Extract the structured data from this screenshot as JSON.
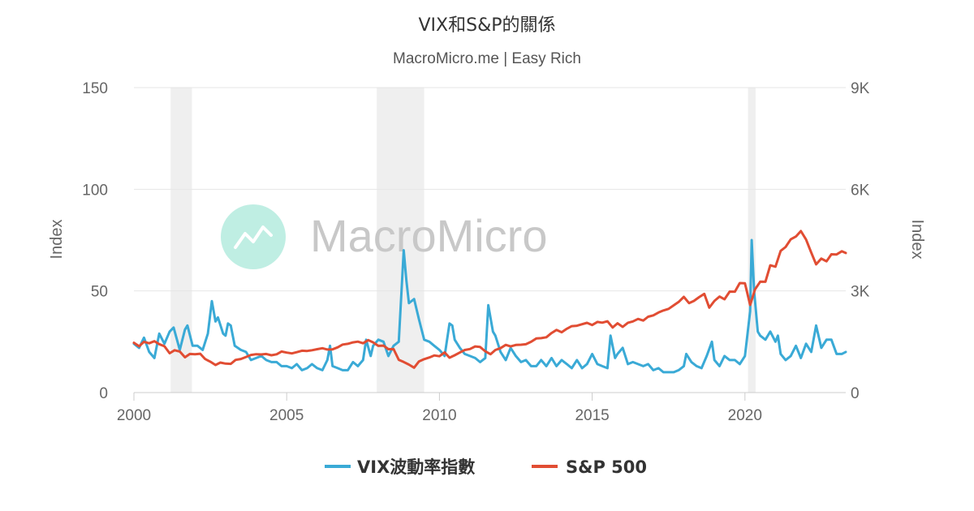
{
  "chart_data": {
    "type": "line",
    "title": "VIX和S&P的關係",
    "subtitle": "MacroMicro.me | Easy Rich",
    "watermark": "MacroMicro",
    "y_left": {
      "label": "Index",
      "range": [
        0,
        150
      ],
      "ticks": [
        "0",
        "50",
        "100",
        "150"
      ]
    },
    "y_right": {
      "label": "Index",
      "range": [
        0,
        9000
      ],
      "ticks": [
        "0",
        "3K",
        "6K",
        "9K"
      ]
    },
    "x": {
      "range": [
        2000.0,
        2023.3
      ],
      "ticks": [
        "2000",
        "2005",
        "2010",
        "2015",
        "2020"
      ]
    },
    "grid": true,
    "legend_position": "bottom",
    "recession_bands": [
      [
        2001.2,
        2001.9
      ],
      [
        2007.95,
        2009.5
      ],
      [
        2020.1,
        2020.35
      ]
    ],
    "series": [
      {
        "name": "VIX波動率指數",
        "axis": "left",
        "color": "#3aaad6",
        "points": [
          [
            2000.0,
            24
          ],
          [
            2000.17,
            22
          ],
          [
            2000.33,
            27
          ],
          [
            2000.5,
            20
          ],
          [
            2000.67,
            17
          ],
          [
            2000.83,
            29
          ],
          [
            2001.0,
            24
          ],
          [
            2001.17,
            30
          ],
          [
            2001.3,
            32
          ],
          [
            2001.5,
            21
          ],
          [
            2001.67,
            31
          ],
          [
            2001.75,
            33
          ],
          [
            2001.92,
            23
          ],
          [
            2002.08,
            23
          ],
          [
            2002.25,
            21
          ],
          [
            2002.42,
            29
          ],
          [
            2002.55,
            45
          ],
          [
            2002.67,
            35
          ],
          [
            2002.75,
            37
          ],
          [
            2002.92,
            29
          ],
          [
            2003.0,
            28
          ],
          [
            2003.08,
            34
          ],
          [
            2003.17,
            33
          ],
          [
            2003.3,
            23
          ],
          [
            2003.5,
            21
          ],
          [
            2003.67,
            20
          ],
          [
            2003.83,
            16
          ],
          [
            2004.0,
            17
          ],
          [
            2004.17,
            18
          ],
          [
            2004.33,
            16
          ],
          [
            2004.5,
            15
          ],
          [
            2004.67,
            15
          ],
          [
            2004.83,
            13
          ],
          [
            2005.0,
            13
          ],
          [
            2005.17,
            12
          ],
          [
            2005.33,
            14
          ],
          [
            2005.5,
            11
          ],
          [
            2005.67,
            12
          ],
          [
            2005.83,
            14
          ],
          [
            2006.0,
            12
          ],
          [
            2006.17,
            11
          ],
          [
            2006.33,
            16
          ],
          [
            2006.42,
            23
          ],
          [
            2006.5,
            13
          ],
          [
            2006.67,
            12
          ],
          [
            2006.83,
            11
          ],
          [
            2007.0,
            11
          ],
          [
            2007.17,
            15
          ],
          [
            2007.33,
            13
          ],
          [
            2007.5,
            16
          ],
          [
            2007.6,
            26
          ],
          [
            2007.75,
            18
          ],
          [
            2007.83,
            23
          ],
          [
            2008.0,
            26
          ],
          [
            2008.17,
            25
          ],
          [
            2008.33,
            18
          ],
          [
            2008.5,
            23
          ],
          [
            2008.67,
            25
          ],
          [
            2008.83,
            70
          ],
          [
            2008.92,
            55
          ],
          [
            2009.0,
            44
          ],
          [
            2009.17,
            46
          ],
          [
            2009.33,
            36
          ],
          [
            2009.5,
            26
          ],
          [
            2009.67,
            25
          ],
          [
            2009.83,
            23
          ],
          [
            2010.0,
            21
          ],
          [
            2010.17,
            18
          ],
          [
            2010.33,
            34
          ],
          [
            2010.42,
            33
          ],
          [
            2010.5,
            26
          ],
          [
            2010.67,
            22
          ],
          [
            2010.83,
            19
          ],
          [
            2011.0,
            18
          ],
          [
            2011.17,
            17
          ],
          [
            2011.33,
            15
          ],
          [
            2011.5,
            17
          ],
          [
            2011.6,
            43
          ],
          [
            2011.75,
            30
          ],
          [
            2011.83,
            28
          ],
          [
            2012.0,
            20
          ],
          [
            2012.17,
            16
          ],
          [
            2012.33,
            22
          ],
          [
            2012.5,
            18
          ],
          [
            2012.67,
            15
          ],
          [
            2012.83,
            16
          ],
          [
            2013.0,
            13
          ],
          [
            2013.17,
            13
          ],
          [
            2013.33,
            16
          ],
          [
            2013.5,
            13
          ],
          [
            2013.67,
            17
          ],
          [
            2013.83,
            13
          ],
          [
            2014.0,
            16
          ],
          [
            2014.17,
            14
          ],
          [
            2014.33,
            12
          ],
          [
            2014.5,
            16
          ],
          [
            2014.67,
            12
          ],
          [
            2014.83,
            14
          ],
          [
            2015.0,
            19
          ],
          [
            2015.17,
            14
          ],
          [
            2015.33,
            13
          ],
          [
            2015.5,
            12
          ],
          [
            2015.6,
            28
          ],
          [
            2015.75,
            17
          ],
          [
            2015.83,
            19
          ],
          [
            2016.0,
            22
          ],
          [
            2016.17,
            14
          ],
          [
            2016.33,
            15
          ],
          [
            2016.5,
            14
          ],
          [
            2016.67,
            13
          ],
          [
            2016.83,
            14
          ],
          [
            2017.0,
            11
          ],
          [
            2017.17,
            12
          ],
          [
            2017.33,
            10
          ],
          [
            2017.5,
            10
          ],
          [
            2017.67,
            10
          ],
          [
            2017.83,
            11
          ],
          [
            2018.0,
            13
          ],
          [
            2018.08,
            19
          ],
          [
            2018.25,
            15
          ],
          [
            2018.42,
            13
          ],
          [
            2018.58,
            12
          ],
          [
            2018.75,
            18
          ],
          [
            2018.92,
            25
          ],
          [
            2019.0,
            16
          ],
          [
            2019.17,
            13
          ],
          [
            2019.33,
            18
          ],
          [
            2019.5,
            16
          ],
          [
            2019.67,
            16
          ],
          [
            2019.83,
            14
          ],
          [
            2020.0,
            18
          ],
          [
            2020.17,
            40
          ],
          [
            2020.22,
            75
          ],
          [
            2020.3,
            50
          ],
          [
            2020.42,
            30
          ],
          [
            2020.5,
            28
          ],
          [
            2020.67,
            26
          ],
          [
            2020.83,
            30
          ],
          [
            2021.0,
            25
          ],
          [
            2021.08,
            28
          ],
          [
            2021.17,
            19
          ],
          [
            2021.33,
            16
          ],
          [
            2021.5,
            18
          ],
          [
            2021.67,
            23
          ],
          [
            2021.83,
            17
          ],
          [
            2022.0,
            24
          ],
          [
            2022.17,
            20
          ],
          [
            2022.33,
            33
          ],
          [
            2022.5,
            22
          ],
          [
            2022.67,
            26
          ],
          [
            2022.83,
            26
          ],
          [
            2023.0,
            19
          ],
          [
            2023.17,
            19
          ],
          [
            2023.3,
            20
          ]
        ]
      },
      {
        "name": "S&P 500",
        "axis": "right",
        "color": "#e14d33",
        "points": [
          [
            2000.0,
            1469
          ],
          [
            2000.17,
            1366
          ],
          [
            2000.33,
            1498
          ],
          [
            2000.5,
            1455
          ],
          [
            2000.67,
            1517
          ],
          [
            2000.83,
            1429
          ],
          [
            2001.0,
            1366
          ],
          [
            2001.17,
            1160
          ],
          [
            2001.33,
            1249
          ],
          [
            2001.5,
            1211
          ],
          [
            2001.67,
            1041
          ],
          [
            2001.83,
            1139
          ],
          [
            2002.0,
            1130
          ],
          [
            2002.17,
            1147
          ],
          [
            2002.33,
            990
          ],
          [
            2002.5,
            911
          ],
          [
            2002.67,
            815
          ],
          [
            2002.83,
            885
          ],
          [
            2003.0,
            855
          ],
          [
            2003.17,
            848
          ],
          [
            2003.33,
            964
          ],
          [
            2003.5,
            990
          ],
          [
            2003.67,
            1050
          ],
          [
            2003.83,
            1111
          ],
          [
            2004.0,
            1131
          ],
          [
            2004.17,
            1126
          ],
          [
            2004.33,
            1140
          ],
          [
            2004.5,
            1101
          ],
          [
            2004.67,
            1130
          ],
          [
            2004.83,
            1212
          ],
          [
            2005.0,
            1181
          ],
          [
            2005.17,
            1156
          ],
          [
            2005.33,
            1191
          ],
          [
            2005.5,
            1234
          ],
          [
            2005.67,
            1228
          ],
          [
            2005.83,
            1249
          ],
          [
            2006.0,
            1280
          ],
          [
            2006.17,
            1310
          ],
          [
            2006.33,
            1270
          ],
          [
            2006.5,
            1276
          ],
          [
            2006.67,
            1335
          ],
          [
            2006.83,
            1418
          ],
          [
            2007.0,
            1438
          ],
          [
            2007.17,
            1482
          ],
          [
            2007.33,
            1503
          ],
          [
            2007.5,
            1455
          ],
          [
            2007.67,
            1549
          ],
          [
            2007.83,
            1481
          ],
          [
            2008.0,
            1378
          ],
          [
            2008.17,
            1385
          ],
          [
            2008.33,
            1280
          ],
          [
            2008.5,
            1282
          ],
          [
            2008.67,
            968
          ],
          [
            2008.83,
            903
          ],
          [
            2009.0,
            825
          ],
          [
            2009.17,
            735
          ],
          [
            2009.33,
            919
          ],
          [
            2009.5,
            987
          ],
          [
            2009.67,
            1036
          ],
          [
            2009.83,
            1096
          ],
          [
            2010.0,
            1073
          ],
          [
            2010.17,
            1186
          ],
          [
            2010.33,
            1030
          ],
          [
            2010.5,
            1101
          ],
          [
            2010.67,
            1183
          ],
          [
            2010.83,
            1257
          ],
          [
            2011.0,
            1286
          ],
          [
            2011.17,
            1363
          ],
          [
            2011.33,
            1345
          ],
          [
            2011.5,
            1218
          ],
          [
            2011.67,
            1131
          ],
          [
            2011.83,
            1257
          ],
          [
            2012.0,
            1312
          ],
          [
            2012.17,
            1408
          ],
          [
            2012.33,
            1362
          ],
          [
            2012.5,
            1406
          ],
          [
            2012.67,
            1412
          ],
          [
            2012.83,
            1426
          ],
          [
            2013.0,
            1498
          ],
          [
            2013.17,
            1597
          ],
          [
            2013.33,
            1606
          ],
          [
            2013.5,
            1632
          ],
          [
            2013.67,
            1756
          ],
          [
            2013.83,
            1848
          ],
          [
            2014.0,
            1782
          ],
          [
            2014.17,
            1884
          ],
          [
            2014.33,
            1960
          ],
          [
            2014.5,
            1972
          ],
          [
            2014.67,
            2018
          ],
          [
            2014.83,
            2059
          ],
          [
            2015.0,
            1995
          ],
          [
            2015.17,
            2086
          ],
          [
            2015.33,
            2063
          ],
          [
            2015.5,
            2104
          ],
          [
            2015.67,
            1920
          ],
          [
            2015.83,
            2044
          ],
          [
            2016.0,
            1940
          ],
          [
            2016.17,
            2060
          ],
          [
            2016.33,
            2099
          ],
          [
            2016.5,
            2174
          ],
          [
            2016.67,
            2126
          ],
          [
            2016.83,
            2239
          ],
          [
            2017.0,
            2279
          ],
          [
            2017.17,
            2363
          ],
          [
            2017.33,
            2423
          ],
          [
            2017.5,
            2470
          ],
          [
            2017.67,
            2575
          ],
          [
            2017.83,
            2674
          ],
          [
            2018.0,
            2824
          ],
          [
            2018.17,
            2640
          ],
          [
            2018.33,
            2705
          ],
          [
            2018.5,
            2816
          ],
          [
            2018.67,
            2914
          ],
          [
            2018.83,
            2507
          ],
          [
            2019.0,
            2704
          ],
          [
            2019.17,
            2834
          ],
          [
            2019.33,
            2752
          ],
          [
            2019.5,
            2980
          ],
          [
            2019.67,
            2977
          ],
          [
            2019.83,
            3231
          ],
          [
            2020.0,
            3225
          ],
          [
            2020.17,
            2584
          ],
          [
            2020.33,
            3044
          ],
          [
            2020.5,
            3271
          ],
          [
            2020.67,
            3269
          ],
          [
            2020.83,
            3756
          ],
          [
            2021.0,
            3714
          ],
          [
            2021.17,
            4181
          ],
          [
            2021.33,
            4297
          ],
          [
            2021.5,
            4522
          ],
          [
            2021.67,
            4605
          ],
          [
            2021.83,
            4766
          ],
          [
            2022.0,
            4516
          ],
          [
            2022.17,
            4132
          ],
          [
            2022.33,
            3785
          ],
          [
            2022.5,
            3955
          ],
          [
            2022.67,
            3872
          ],
          [
            2022.83,
            4080
          ],
          [
            2023.0,
            4076
          ],
          [
            2023.17,
            4169
          ],
          [
            2023.3,
            4120
          ]
        ]
      }
    ]
  }
}
